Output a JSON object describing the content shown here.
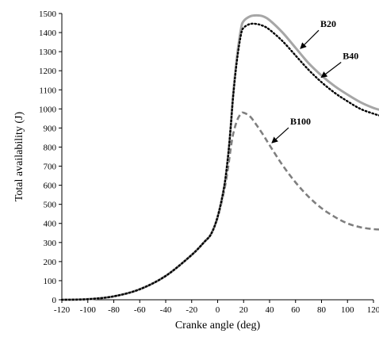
{
  "chart_data": {
    "type": "line",
    "xlabel": "Cranke angle (deg)",
    "ylabel": "Total availability (J)",
    "xlim": [
      -120,
      120
    ],
    "ylim": [
      0,
      1500
    ],
    "x_ticks": [
      -120,
      -100,
      -80,
      -60,
      -40,
      -20,
      0,
      20,
      40,
      60,
      80,
      100,
      120
    ],
    "y_ticks": [
      0,
      100,
      200,
      300,
      400,
      500,
      600,
      700,
      800,
      900,
      1000,
      1100,
      1200,
      1300,
      1400,
      1500
    ],
    "grid": false,
    "legend": "none",
    "series": [
      {
        "name": "B20",
        "style": "solid",
        "color": "#a6a6a6",
        "x": [
          -120,
          -100,
          -80,
          -60,
          -40,
          -20,
          -10,
          -5,
          0,
          5,
          8,
          10,
          12,
          15,
          18,
          20,
          25,
          30,
          35,
          40,
          50,
          60,
          70,
          80,
          90,
          100,
          110,
          120,
          125
        ],
        "y": [
          0,
          3,
          18,
          55,
          125,
          235,
          305,
          345,
          435,
          590,
          750,
          900,
          1080,
          1280,
          1420,
          1460,
          1485,
          1490,
          1485,
          1465,
          1400,
          1320,
          1240,
          1175,
          1120,
          1075,
          1035,
          1005,
          995
        ]
      },
      {
        "name": "B40",
        "style": "dotted",
        "color": "#000000",
        "x": [
          -120,
          -100,
          -80,
          -60,
          -40,
          -20,
          -10,
          -5,
          0,
          5,
          8,
          10,
          12,
          15,
          18,
          20,
          25,
          30,
          35,
          40,
          50,
          60,
          70,
          80,
          90,
          100,
          110,
          120,
          125
        ],
        "y": [
          0,
          3,
          18,
          55,
          125,
          235,
          305,
          345,
          435,
          590,
          750,
          900,
          1070,
          1260,
          1390,
          1425,
          1445,
          1445,
          1435,
          1415,
          1355,
          1280,
          1205,
          1140,
          1085,
          1040,
          1000,
          975,
          965
        ]
      },
      {
        "name": "B100",
        "style": "dashed",
        "color": "#7f7f7f",
        "x": [
          -120,
          -100,
          -80,
          -60,
          -40,
          -20,
          -10,
          -5,
          0,
          5,
          8,
          10,
          12,
          15,
          18,
          20,
          25,
          30,
          35,
          40,
          50,
          60,
          70,
          80,
          90,
          100,
          110,
          120,
          125
        ],
        "y": [
          0,
          3,
          18,
          55,
          125,
          235,
          305,
          345,
          430,
          570,
          690,
          790,
          870,
          940,
          975,
          980,
          960,
          915,
          865,
          810,
          705,
          615,
          540,
          480,
          435,
          400,
          380,
          370,
          368
        ]
      }
    ],
    "annotations": [
      {
        "text": "B20",
        "series": "B20",
        "at_x": 62
      },
      {
        "text": "B40",
        "series": "B40",
        "at_x": 78
      },
      {
        "text": "B100",
        "series": "B100",
        "at_x": 40
      }
    ]
  }
}
